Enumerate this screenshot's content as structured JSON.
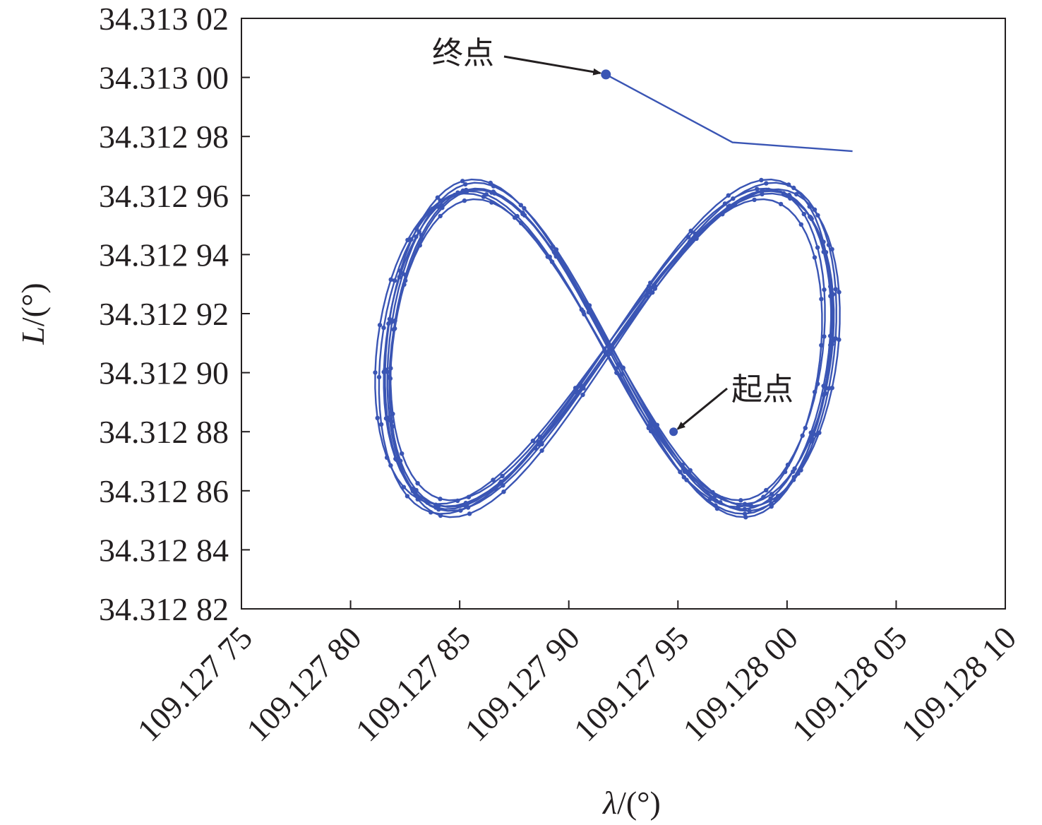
{
  "chart_data": {
    "type": "line",
    "xlabel": "λ/(°)",
    "ylabel": "L/(°)",
    "xlim": [
      109.12775,
      109.1281
    ],
    "ylim": [
      34.31282,
      34.31302
    ],
    "x_ticks": [
      109.12775,
      109.1278,
      109.12785,
      109.1279,
      109.12795,
      109.128,
      109.12805,
      109.1281
    ],
    "x_tick_labels": [
      "109.127 75",
      "109.127 80",
      "109.127 85",
      "109.127 90",
      "109.127 95",
      "109.128 00",
      "109.128 05",
      "109.128 10"
    ],
    "y_ticks": [
      34.31282,
      34.31284,
      34.31286,
      34.31288,
      34.3129,
      34.31292,
      34.31294,
      34.31296,
      34.31298,
      34.313,
      34.31302
    ],
    "y_tick_labels": [
      "34.312 82",
      "34.312 84",
      "34.312 86",
      "34.312 88",
      "34.312 90",
      "34.312 92",
      "34.312 94",
      "34.312 96",
      "34.312 98",
      "34.313 00",
      "34.313 02"
    ],
    "grid": false,
    "series_color": "#3a55b4",
    "figure8": {
      "left_lobe_center": [
        109.127838,
        34.312913
      ],
      "right_lobe_center": [
        109.127998,
        34.312903
      ],
      "lobe_half_width": 2.15e-05,
      "lobe_half_height": 6.35e-05,
      "laps": 8
    },
    "start_point": {
      "x": 109.127948,
      "y": 34.31288
    },
    "end_point": {
      "x": 109.127917,
      "y": 34.313001
    },
    "annotations": [
      {
        "text": "终点",
        "x": 109.127917,
        "y": 34.313001
      },
      {
        "text": "起点",
        "x": 109.127948,
        "y": 34.31288
      }
    ]
  }
}
